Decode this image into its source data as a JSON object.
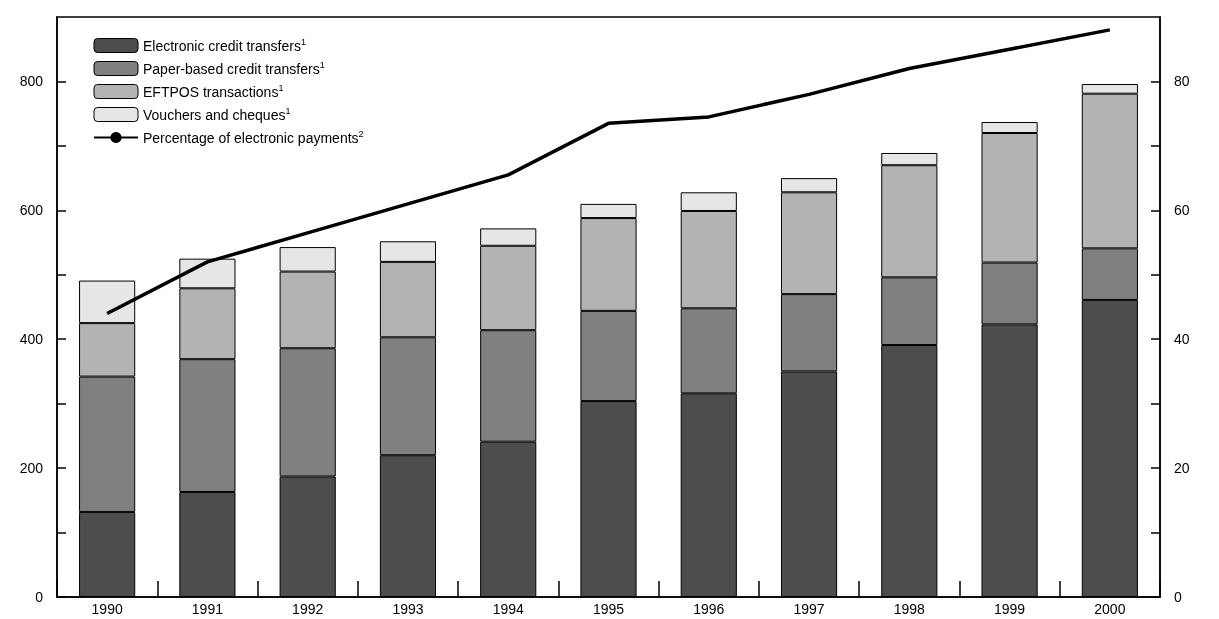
{
  "chart_data": {
    "type": "bar",
    "stacked": true,
    "categories": [
      "1990",
      "1991",
      "1992",
      "1993",
      "1994",
      "1995",
      "1996",
      "1997",
      "1998",
      "1999",
      "2000"
    ],
    "series": [
      {
        "name": "Electronic credit transfers$^{1}$",
        "color": "#4d4d4d",
        "values": [
          132,
          163,
          187,
          220,
          241,
          304,
          316,
          350,
          391,
          423,
          461
        ]
      },
      {
        "name": "Paper-based credit transfers$^{1}$",
        "color": "#808080",
        "values": [
          210,
          206,
          199,
          183,
          173,
          140,
          132,
          120,
          105,
          96,
          80
        ]
      },
      {
        "name": "EFTPOS transactions$^{1}$",
        "color": "#b3b3b3",
        "values": [
          83,
          110,
          119,
          117,
          131,
          144,
          151,
          158,
          174,
          201,
          240
        ]
      },
      {
        "name": "Vouchers and cheques$^{1}$",
        "color": "#e6e6e6",
        "values": [
          66,
          46,
          38,
          32,
          27,
          22,
          29,
          22,
          19,
          17,
          15
        ]
      },
      {
        "name": "Percentage of electronic payments$^{2}$",
        "type": "line",
        "axis": "y2",
        "color": "#000000",
        "marker": "none",
        "values": [
          44,
          52,
          56.5,
          61,
          65.5,
          73.5,
          74.5,
          78,
          82,
          85,
          88
        ]
      }
    ],
    "ylim": [
      0,
      900
    ],
    "yticks": [
      0,
      {
        "value": 100,
        "label": null
      },
      200,
      {
        "value": 300,
        "label": null
      },
      400,
      {
        "value": 500,
        "label": null
      },
      600,
      {
        "value": 700,
        "label": null
      },
      800
    ],
    "y2lim": [
      0,
      90
    ],
    "y2ticks": [
      0,
      {
        "value": 10,
        "label": null
      },
      20,
      {
        "value": 30,
        "label": null
      },
      40,
      {
        "value": 50,
        "label": null
      },
      60,
      {
        "value": 70,
        "label": null
      },
      80
    ],
    "legend": "top left",
    "grid": false
  }
}
